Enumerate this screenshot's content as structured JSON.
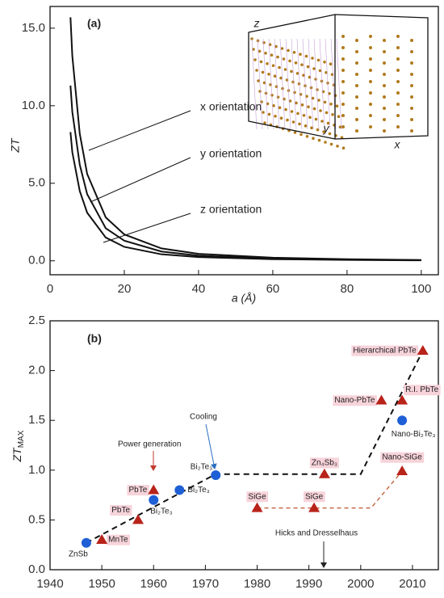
{
  "chart_data": [
    {
      "type": "line",
      "panel": "(a)",
      "xlabel": "a (Å)",
      "ylabel": "ZT",
      "x": [
        5.5,
        6,
        8,
        10,
        15,
        20,
        30,
        40,
        60,
        80,
        100
      ],
      "series": [
        {
          "color": "#111111",
          "values": [
            15.7,
            13.2,
            8.2,
            5.6,
            2.8,
            1.7,
            0.8,
            0.45,
            0.2,
            0.1,
            0.05
          ],
          "label": "x orientation"
        },
        {
          "color": "#111111",
          "values": [
            11.3,
            9.6,
            6.2,
            4.3,
            2.1,
            1.3,
            0.6,
            0.33,
            0.15,
            0.08,
            0.04
          ],
          "label": "y orientation"
        },
        {
          "color": "#111111",
          "values": [
            8.3,
            7.0,
            4.5,
            3.1,
            1.5,
            0.9,
            0.42,
            0.24,
            0.1,
            0.06,
            0.03
          ],
          "label": "z orientation"
        }
      ],
      "inset_labels": [
        "z",
        "y",
        "x"
      ],
      "xlim": [
        0,
        104.6
      ],
      "xticks": [
        0,
        20,
        40,
        60,
        80,
        100
      ],
      "ylim": [
        -0.9,
        16.4
      ],
      "yticks": [
        {
          "value": 0,
          "label": "0.0"
        },
        {
          "value": 5,
          "label": "5.0"
        },
        {
          "value": 10,
          "label": "10.0"
        },
        {
          "value": 15,
          "label": "15.0"
        }
      ]
    },
    {
      "type": "scatter",
      "panel": "(b)",
      "ylabel": "ZT",
      "ylabel_sub": "MAX",
      "series": [
        {
          "color": "#1f5fd6",
          "marker": "circle",
          "x": [
            1947,
            1960,
            1965,
            1972,
            2008
          ],
          "values": [
            0.27,
            0.7,
            0.8,
            0.95,
            1.5
          ],
          "labels": [
            "ZnSb",
            "Bi₂Te₃",
            "Bi₂Te₃",
            "Bi₂Te₃",
            "Nano-Bi₂Te₃"
          ]
        },
        {
          "color": "#b8231a",
          "marker": "triangle",
          "x": [
            1950,
            1957,
            1960,
            1980,
            1991,
            1993,
            2004,
            2008,
            2012,
            2008
          ],
          "values": [
            0.3,
            0.5,
            0.8,
            0.62,
            0.62,
            0.96,
            1.7,
            1.7,
            2.2,
            0.99
          ],
          "labels": [
            "MnTe",
            "PbTe",
            "PbTe",
            "SiGe",
            "SiGe",
            "Zn₄Sb₃",
            "Nano-PbTe",
            "R.I. PbTe",
            "Hierarchical PbTe",
            "Nano-SiGe"
          ]
        }
      ],
      "trend_lines": [
        {
          "color": "#111111",
          "x": [
            1947,
            1972,
            2000,
            2012
          ],
          "values": [
            0.27,
            0.96,
            0.96,
            2.2
          ]
        },
        {
          "color": "#c0562f",
          "x": [
            1980,
            2002,
            2008
          ],
          "values": [
            0.62,
            0.62,
            0.99
          ]
        }
      ],
      "annotations": [
        "Power generation",
        "Cooling",
        "Hicks and Dresselhaus"
      ],
      "xlim": [
        1940,
        2015
      ],
      "xticks": [
        1940,
        1950,
        1960,
        1970,
        1980,
        1990,
        2000,
        2010
      ],
      "ylim": [
        0,
        2.5
      ],
      "yticks": [
        {
          "value": 0,
          "label": "0.0"
        },
        {
          "value": 0.5,
          "label": "0.5"
        },
        {
          "value": 1,
          "label": "1.0"
        },
        {
          "value": 1.5,
          "label": "1.5"
        },
        {
          "value": 2,
          "label": "2.0"
        },
        {
          "value": 2.5,
          "label": "2.5"
        }
      ]
    }
  ]
}
